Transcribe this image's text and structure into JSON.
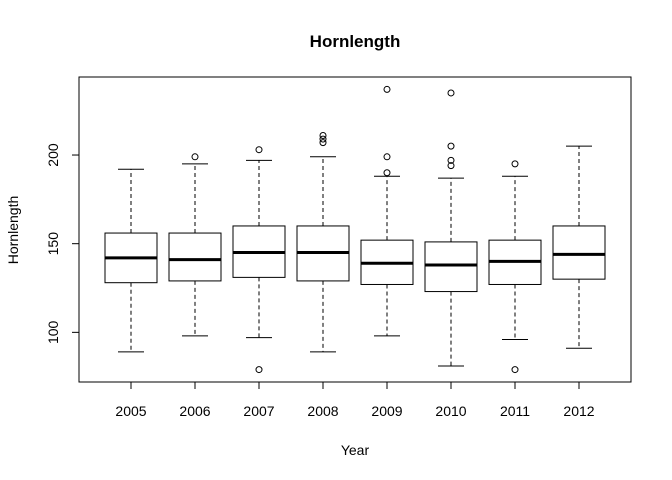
{
  "chart_data": {
    "type": "boxplot",
    "title": "Hornlength",
    "xlabel": "Year",
    "ylabel": "Hornlength",
    "categories": [
      "2005",
      "2006",
      "2007",
      "2008",
      "2009",
      "2010",
      "2011",
      "2012"
    ],
    "y_ticks": [
      100,
      150,
      200
    ],
    "ylim": [
      72,
      244
    ],
    "boxes": [
      {
        "category": "2005",
        "whisker_low": 89,
        "q1": 128,
        "median": 142,
        "q3": 156,
        "whisker_high": 192,
        "outliers": []
      },
      {
        "category": "2006",
        "whisker_low": 98,
        "q1": 129,
        "median": 141,
        "q3": 156,
        "whisker_high": 195,
        "outliers": [
          199
        ]
      },
      {
        "category": "2007",
        "whisker_low": 97,
        "q1": 131,
        "median": 145,
        "q3": 160,
        "whisker_high": 197,
        "outliers": [
          203,
          79
        ]
      },
      {
        "category": "2008",
        "whisker_low": 89,
        "q1": 129,
        "median": 145,
        "q3": 160,
        "whisker_high": 199,
        "outliers": [
          211,
          209,
          207
        ]
      },
      {
        "category": "2009",
        "whisker_low": 98,
        "q1": 127,
        "median": 139,
        "q3": 152,
        "whisker_high": 188,
        "outliers": [
          237,
          199,
          190
        ]
      },
      {
        "category": "2010",
        "whisker_low": 81,
        "q1": 123,
        "median": 138,
        "q3": 151,
        "whisker_high": 187,
        "outliers": [
          235,
          205,
          197,
          194
        ]
      },
      {
        "category": "2011",
        "whisker_low": 96,
        "q1": 127,
        "median": 140,
        "q3": 152,
        "whisker_high": 188,
        "outliers": [
          195,
          79
        ]
      },
      {
        "category": "2012",
        "whisker_low": 91,
        "q1": 130,
        "median": 144,
        "q3": 160,
        "whisker_high": 205,
        "outliers": []
      }
    ],
    "grid": false,
    "legend": "none"
  }
}
